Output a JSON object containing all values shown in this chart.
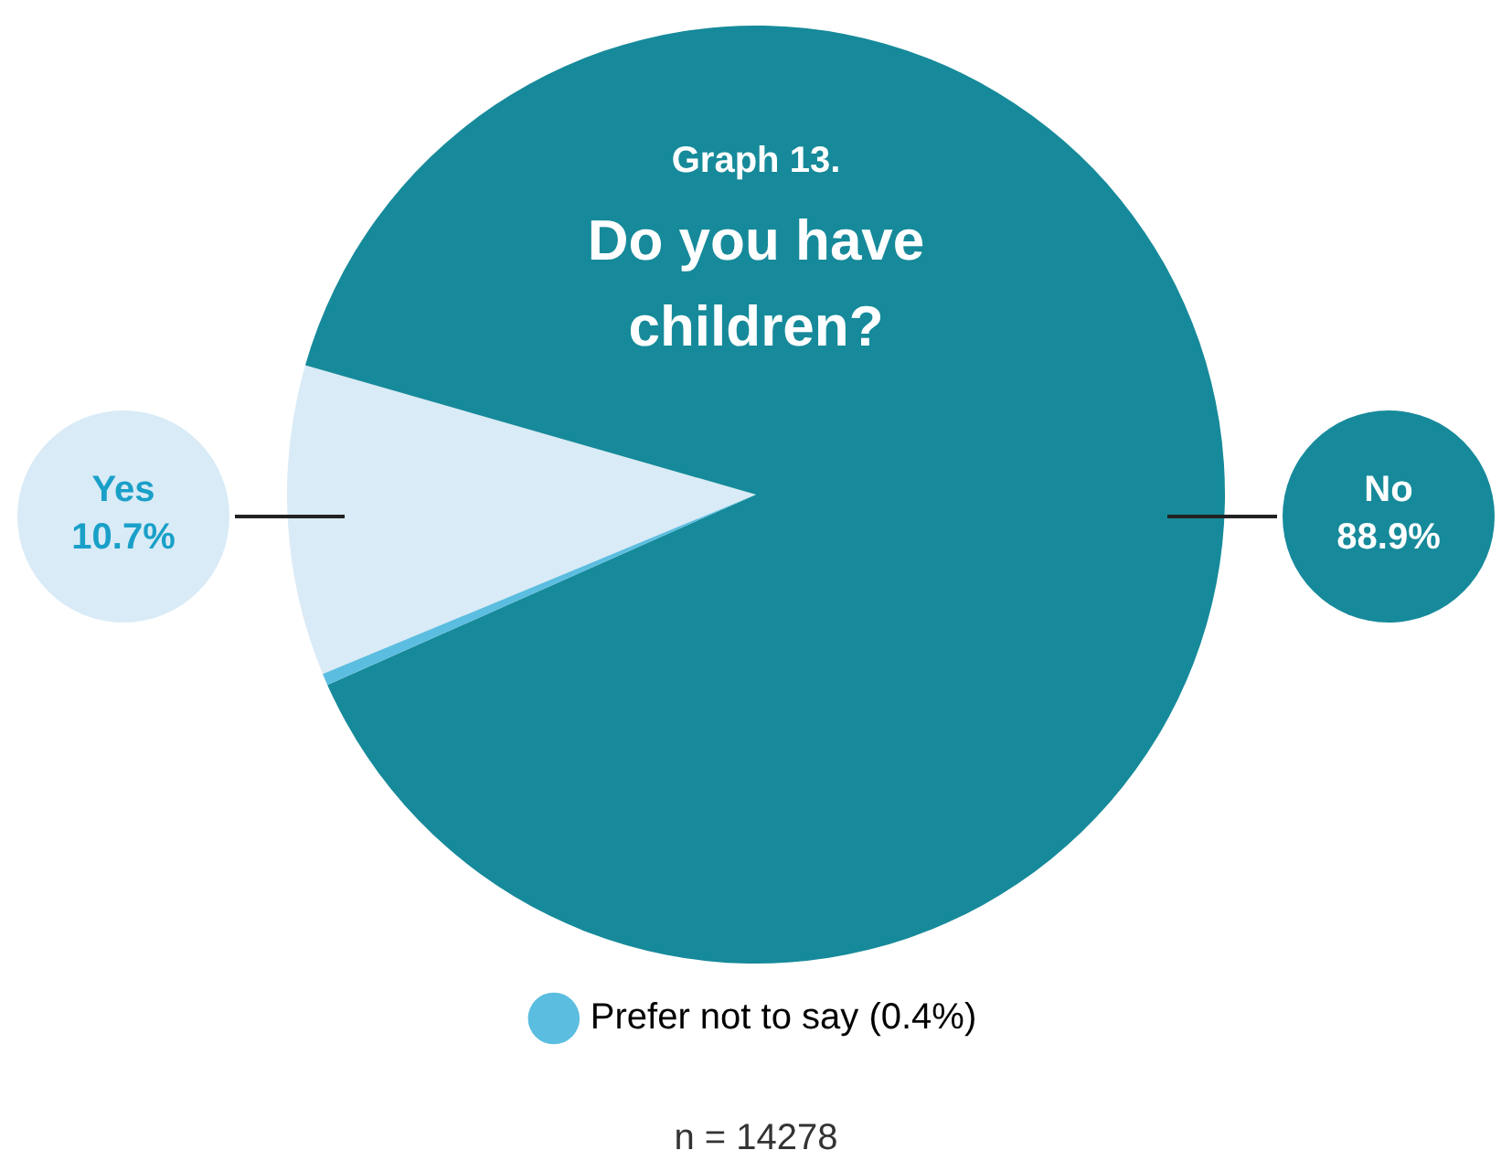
{
  "chart_data": {
    "type": "pie",
    "title": "Graph 13.",
    "subtitle": "Do you have children?",
    "categories": [
      "Yes",
      "No",
      "Prefer not to say (0.4%)"
    ],
    "values": [
      10.7,
      88.9,
      0.4
    ],
    "colors": [
      "#d9ebf6",
      "#168a9a",
      "#5bbde0"
    ],
    "value_labels": [
      "10.7%",
      "88.9%",
      null
    ],
    "legend": "bottom",
    "annotations": [
      "n = 14278"
    ]
  }
}
